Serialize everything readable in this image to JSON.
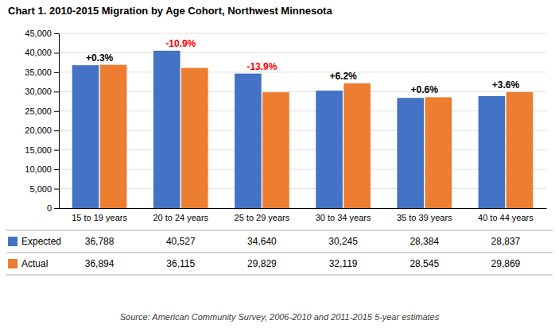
{
  "chart_data": {
    "type": "bar",
    "title": "Chart 1.  2010-2015 Migration by Age Cohort, Northwest Minnesota",
    "categories": [
      "15 to 19 years",
      "20 to 24 years",
      "25 to 29 years",
      "30 to 34 years",
      "35 to 39 years",
      "40 to 44 years"
    ],
    "series": [
      {
        "name": "Expected",
        "color": "#4472C4",
        "values": [
          36788,
          40527,
          34640,
          30245,
          28384,
          28837
        ],
        "value_labels": [
          "36,788",
          "40,527",
          "34,640",
          "30,245",
          "28,384",
          "28,837"
        ]
      },
      {
        "name": "Actual",
        "color": "#ED7D31",
        "values": [
          36894,
          36115,
          29829,
          32119,
          28545,
          29869
        ],
        "value_labels": [
          "36,894",
          "36,115",
          "29,829",
          "32,119",
          "28,545",
          "29,869"
        ]
      }
    ],
    "ylim": [
      0,
      45000
    ],
    "yticks": [
      0,
      {
        "value": 5000,
        "label": "5,000"
      },
      {
        "value": 10000,
        "label": "10,000"
      },
      {
        "value": 15000,
        "label": "15,000"
      },
      {
        "value": 20000,
        "label": "20,000"
      },
      {
        "value": 25000,
        "label": "25,000"
      },
      {
        "value": 30000,
        "label": "30,000"
      },
      {
        "value": 35000,
        "label": "35,000"
      },
      {
        "value": 40000,
        "label": "40,000"
      },
      {
        "value": 45000,
        "label": "45,000"
      }
    ],
    "grid": true,
    "legend": "bottom",
    "data_labels": true,
    "annotations": [
      {
        "text": "+0.3%",
        "color": "black"
      },
      {
        "text": "-10.9%",
        "color": "red"
      },
      {
        "text": "-13.9%",
        "color": "red"
      },
      {
        "text": "+6.2%",
        "color": "black"
      },
      {
        "text": "+0.6%",
        "color": "black"
      },
      {
        "text": "+3.6%",
        "color": "black"
      }
    ],
    "source": "Source: American Community Survey, 2006-2010 and 2011-2015 5-year estimates"
  }
}
